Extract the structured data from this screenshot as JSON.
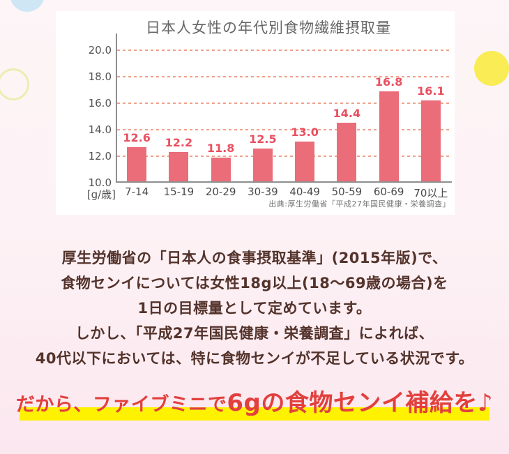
{
  "chart_data": {
    "type": "bar",
    "title": "日本人女性の年代別食物繊維摂取量",
    "unit_label": "[g/歳]",
    "categories": [
      "7-14",
      "15-19",
      "20-29",
      "30-39",
      "40-49",
      "50-59",
      "60-69",
      "70以上"
    ],
    "values": [
      12.6,
      12.2,
      11.8,
      12.5,
      13.0,
      14.4,
      16.8,
      16.1
    ],
    "value_labels": [
      "12.6",
      "12.2",
      "11.8",
      "12.5",
      "13.0",
      "14.4",
      "16.8",
      "16.1"
    ],
    "yticks": [
      10.0,
      12.0,
      14.0,
      16.0,
      18.0,
      20.0
    ],
    "ytick_labels": [
      "10.0",
      "12.0",
      "14.0",
      "16.0",
      "18.0",
      "20.0"
    ],
    "ylim": [
      10,
      21.3
    ],
    "grid": "horizontal-dashed",
    "legend": "none",
    "source": "出典:厚生労働省「平成27年国民健康・栄養調査」",
    "colors": {
      "bar": "#ea6d79",
      "value_label": "#e85060",
      "gridline": "#f0a18b",
      "axis": "#8f8f8f",
      "title": "#666666",
      "ticks": "#4a4a4a",
      "source": "#757575"
    }
  },
  "body_text": {
    "lines": [
      "厚生労働省の「日本人の食事摂取基準」(2015年版)で、",
      "食物センイについては女性18g以上(18〜69歳の場合)を",
      "1日の目標量として定めています。",
      "しかし、「平成27年国民健康・栄養調査」によれば、",
      "40代以下においては、特に食物センイが不足している状況です。"
    ],
    "text_color": "#53332b"
  },
  "tagline": {
    "prefix": "だから、ファイブミニで",
    "emphasis": "6gの食物センイ補給を♪",
    "text_color": "#e2403d",
    "highlight_color": "#fff200"
  },
  "decorations": {
    "blue_circle_color": "#cfe7f5",
    "yellow_circle_color": "#f9ec55",
    "ring_circle_color": "#ebeeb0",
    "background_top": "#fdf5f7",
    "background_bottom": "#fbe7ef"
  }
}
